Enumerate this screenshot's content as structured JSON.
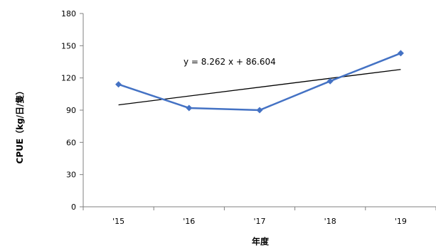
{
  "chart_data": {
    "type": "line",
    "categories": [
      "'15",
      "'16",
      "'17",
      "'18",
      "'19"
    ],
    "series": [
      {
        "values": [
          114,
          92,
          90,
          117,
          143
        ],
        "color": "#4472C4",
        "marker": "diamond"
      }
    ],
    "trendline": {
      "type": "linear",
      "slope": 8.262,
      "intercept": 86.604,
      "color": "#000000",
      "equation_label": "y = 8.262 x + 86.604"
    },
    "xlabel": "年度",
    "ylabel": "CPUE（kg/日/隻）",
    "ylim": [
      0,
      180
    ],
    "yticks": [
      0,
      30,
      60,
      90,
      120,
      150,
      180
    ],
    "grid": false
  }
}
